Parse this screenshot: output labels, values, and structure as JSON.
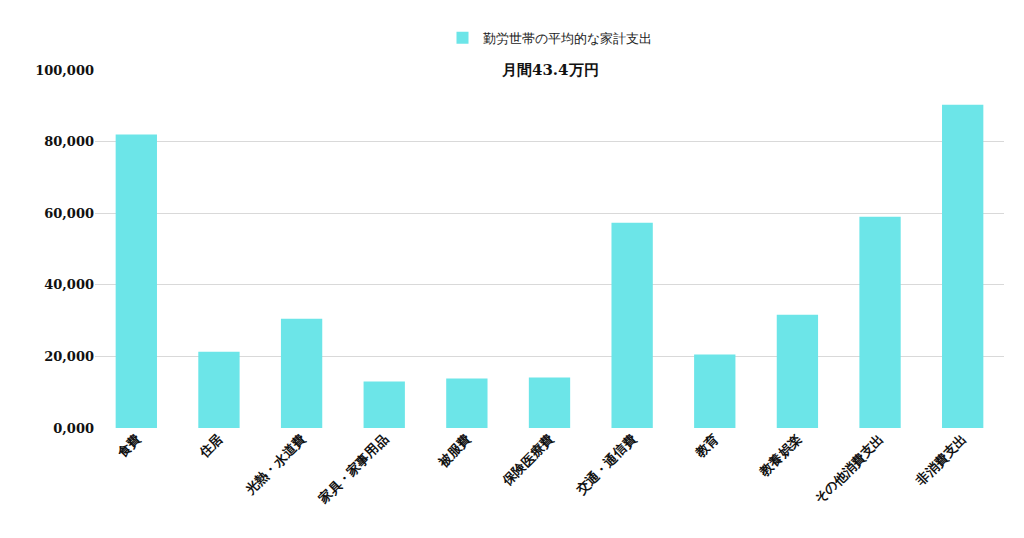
{
  "chart_data": {
    "type": "bar",
    "subtitle": "月間43.4万円",
    "categories": [
      "食費",
      "住居",
      "光熱・水道費",
      "家具・家事用品",
      "被服費",
      "保険医療費",
      "交通・通信費",
      "教育",
      "教養娯楽",
      "その他消費支出",
      "非消費支出"
    ],
    "series": [
      {
        "name": "勤労世帯の平均的な家計支出",
        "color": "#6ce5e8",
        "values": [
          82000,
          21300,
          30500,
          13000,
          13800,
          14100,
          57300,
          20500,
          31600,
          59000,
          90300
        ]
      }
    ],
    "ylim": [
      0,
      100000
    ],
    "yticks": [
      {
        "value": 0,
        "label": "0,000"
      },
      {
        "value": 20000,
        "label": "20,000"
      },
      {
        "value": 40000,
        "label": "40,000"
      },
      {
        "value": 60000,
        "label": "60,000"
      },
      {
        "value": 80000,
        "label": "80,000"
      },
      {
        "value": 100000,
        "label": "100,000"
      }
    ],
    "grid": true,
    "legend": "top"
  }
}
